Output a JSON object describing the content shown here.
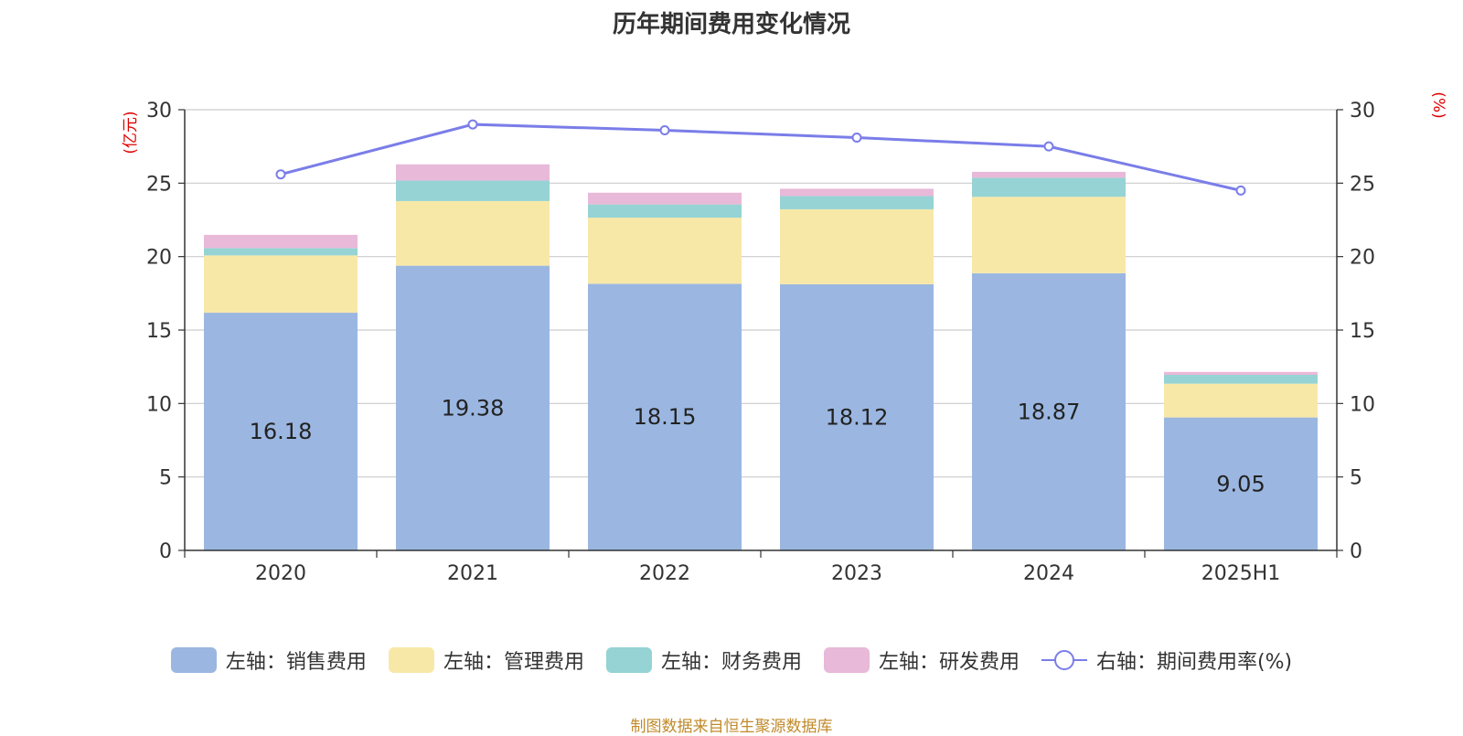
{
  "chart_data": {
    "type": "bar",
    "title": "历年期间费用变化情况",
    "categories": [
      "2020",
      "2021",
      "2022",
      "2023",
      "2024",
      "2025H1"
    ],
    "left_axis": {
      "label": "(亿元)",
      "ylim": [
        0,
        30
      ],
      "ticks": [
        "0",
        "5",
        "10",
        "15",
        "20",
        "25",
        "30"
      ]
    },
    "right_axis": {
      "label": "(%)",
      "ylim": [
        0,
        30
      ],
      "ticks": [
        "0",
        "5",
        "10",
        "15",
        "20",
        "25",
        "30"
      ]
    },
    "series": [
      {
        "name": "左轴：销售费用",
        "kind": "bar",
        "color": "#9bb7e1",
        "values": [
          16.18,
          19.38,
          18.15,
          18.12,
          18.87,
          9.05
        ],
        "labels": [
          "16.18",
          "19.38",
          "18.15",
          "18.12",
          "18.87",
          "9.05"
        ]
      },
      {
        "name": "左轴：管理费用",
        "kind": "bar",
        "color": "#f8e8a8",
        "values": [
          3.9,
          4.4,
          4.5,
          5.1,
          5.2,
          2.3
        ]
      },
      {
        "name": "左轴：财务费用",
        "kind": "bar",
        "color": "#96d3d4",
        "values": [
          0.5,
          1.4,
          0.9,
          0.9,
          1.3,
          0.6
        ]
      },
      {
        "name": "左轴：研发费用",
        "kind": "bar",
        "color": "#e8b9d8",
        "values": [
          0.9,
          1.1,
          0.8,
          0.5,
          0.4,
          0.2
        ]
      },
      {
        "name": "右轴：期间费用率(%)",
        "kind": "line",
        "color": "#7a7de8",
        "values": [
          25.6,
          29.0,
          28.6,
          28.1,
          27.5,
          24.5
        ]
      }
    ],
    "grid": true,
    "legend_position": "bottom"
  },
  "source": "制图数据来自恒生聚源数据库"
}
